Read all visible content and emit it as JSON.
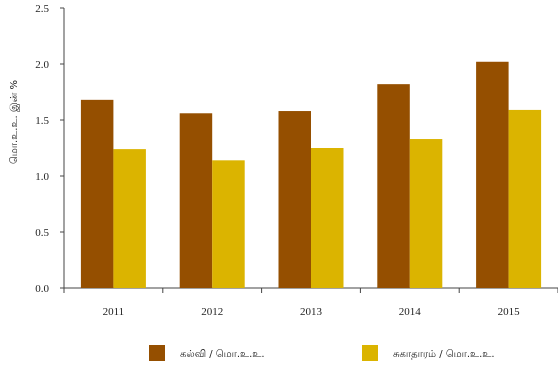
{
  "chart_data": {
    "type": "bar",
    "categories": [
      "2011",
      "2012",
      "2013",
      "2014",
      "2015"
    ],
    "series": [
      {
        "name": "கல்வி / மொ.உ.உ.",
        "values": [
          1.68,
          1.56,
          1.58,
          1.82,
          2.02
        ],
        "color": "#954F00"
      },
      {
        "name": "சுகாதாரம் / மொ.உ.உ.",
        "values": [
          1.24,
          1.14,
          1.25,
          1.33,
          1.59
        ],
        "color": "#DBB400"
      }
    ],
    "ylabel": "மொ.உ.உ. இன் %",
    "ylim": [
      0,
      2.5
    ],
    "yticks": [
      "0.0",
      "0.5",
      "1.0",
      "1.5",
      "2.0",
      "2.5"
    ],
    "grid": false,
    "legend": "bottom"
  }
}
